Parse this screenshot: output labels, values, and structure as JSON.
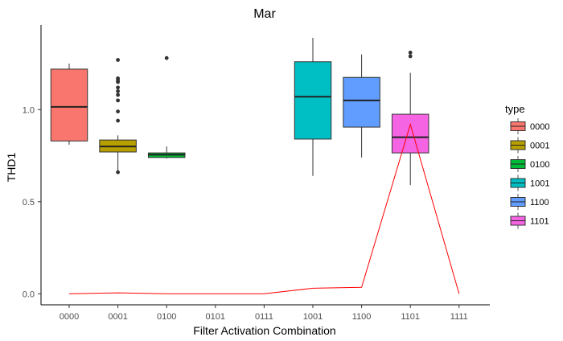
{
  "chart_data": {
    "type": "box",
    "title": "Mar",
    "xlabel": "Filter Activation Combination",
    "ylabel": "THD1",
    "categories": [
      "0000",
      "0001",
      "0100",
      "0101",
      "0111",
      "1001",
      "1100",
      "1101",
      "1111"
    ],
    "y_ticks": [
      0.0,
      0.5,
      1.0
    ],
    "y_tick_labels": [
      "0.0",
      "0.5",
      "1.0"
    ],
    "ylim": [
      -0.06,
      1.46
    ],
    "grid": false,
    "legend": {
      "title": "type",
      "position": "right",
      "entries": [
        {
          "label": "0000",
          "color": "#F8766D"
        },
        {
          "label": "0001",
          "color": "#B79F00"
        },
        {
          "label": "0100",
          "color": "#00BA38"
        },
        {
          "label": "1001",
          "color": "#00BFC4"
        },
        {
          "label": "1100",
          "color": "#619CFF"
        },
        {
          "label": "1101",
          "color": "#F564E3"
        }
      ]
    },
    "boxes": [
      {
        "category": "0000",
        "type": "0000",
        "color": "#F8766D",
        "lower_whisker": 0.81,
        "q1": 0.83,
        "median": 1.015,
        "q3": 1.22,
        "upper_whisker": 1.25,
        "outliers": []
      },
      {
        "category": "0001",
        "type": "0001",
        "color": "#B79F00",
        "lower_whisker": 0.66,
        "q1": 0.77,
        "median": 0.8,
        "q3": 0.835,
        "upper_whisker": 0.86,
        "outliers": [
          0.66,
          0.94,
          0.99,
          1.05,
          1.08,
          1.1,
          1.12,
          1.15,
          1.16,
          1.17,
          1.27
        ]
      },
      {
        "category": "0100",
        "type": "0100",
        "color": "#00BA38",
        "lower_whisker": 0.735,
        "q1": 0.74,
        "median": 0.755,
        "q3": 0.765,
        "upper_whisker": 0.8,
        "outliers": [
          1.28
        ]
      },
      {
        "category": "1001",
        "type": "1001",
        "color": "#00BFC4",
        "lower_whisker": 0.64,
        "q1": 0.84,
        "median": 1.07,
        "q3": 1.26,
        "upper_whisker": 1.39,
        "outliers": []
      },
      {
        "category": "1100",
        "type": "1100",
        "color": "#619CFF",
        "lower_whisker": 0.74,
        "q1": 0.905,
        "median": 1.05,
        "q3": 1.175,
        "upper_whisker": 1.3,
        "outliers": []
      },
      {
        "category": "1101",
        "type": "1101",
        "color": "#F564E3",
        "lower_whisker": 0.59,
        "q1": 0.765,
        "median": 0.85,
        "q3": 0.975,
        "upper_whisker": 1.2,
        "outliers": [
          1.29,
          1.31
        ]
      }
    ],
    "line_series": {
      "color": "#FF0000",
      "x": [
        "0000",
        "0001",
        "0100",
        "0101",
        "0111",
        "1001",
        "1100",
        "1101",
        "1111"
      ],
      "values": [
        0.0,
        0.005,
        0.0,
        0.0,
        0.0,
        0.03,
        0.035,
        0.92,
        0.0
      ]
    }
  }
}
